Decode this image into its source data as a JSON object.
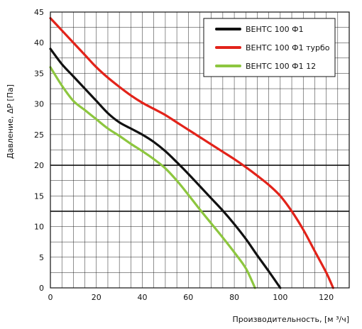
{
  "chart_data": {
    "type": "line",
    "xlabel": "Производительность, [м ³/ч]",
    "ylabel": "Давление, ΔP [Па]",
    "xlim": [
      0,
      130
    ],
    "ylim": [
      0,
      45
    ],
    "x_ticks": [
      0,
      20,
      40,
      60,
      80,
      100,
      120
    ],
    "y_ticks": [
      0,
      5,
      10,
      15,
      20,
      25,
      30,
      35,
      40,
      45
    ],
    "grid": true,
    "major_hlines": [
      20,
      12.5
    ],
    "legend_position": "top-right",
    "series": [
      {
        "name": "ВЕНТС 100 Ф1",
        "color": "#111111",
        "points": [
          [
            0,
            39
          ],
          [
            5,
            36.5
          ],
          [
            10,
            34.5
          ],
          [
            15,
            32.5
          ],
          [
            20,
            30.5
          ],
          [
            25,
            28.5
          ],
          [
            30,
            27
          ],
          [
            35,
            26
          ],
          [
            40,
            25
          ],
          [
            45,
            23.8
          ],
          [
            50,
            22.3
          ],
          [
            55,
            20.5
          ],
          [
            60,
            18.6
          ],
          [
            65,
            16.6
          ],
          [
            70,
            14.6
          ],
          [
            75,
            12.6
          ],
          [
            80,
            10.4
          ],
          [
            85,
            8
          ],
          [
            90,
            5.3
          ],
          [
            95,
            2.7
          ],
          [
            100,
            0
          ]
        ]
      },
      {
        "name": "ВЕНТС 100 Ф1 турбо",
        "color": "#e2231a",
        "points": [
          [
            0,
            44
          ],
          [
            5,
            42
          ],
          [
            10,
            40
          ],
          [
            15,
            38
          ],
          [
            20,
            36
          ],
          [
            25,
            34.3
          ],
          [
            30,
            32.8
          ],
          [
            35,
            31.4
          ],
          [
            40,
            30.2
          ],
          [
            45,
            29.2
          ],
          [
            50,
            28.2
          ],
          [
            55,
            27
          ],
          [
            60,
            25.8
          ],
          [
            65,
            24.6
          ],
          [
            70,
            23.4
          ],
          [
            75,
            22.2
          ],
          [
            80,
            21
          ],
          [
            85,
            19.7
          ],
          [
            90,
            18.3
          ],
          [
            95,
            16.8
          ],
          [
            100,
            15
          ],
          [
            105,
            12.5
          ],
          [
            110,
            9.5
          ],
          [
            115,
            6
          ],
          [
            120,
            2.5
          ],
          [
            123,
            0
          ]
        ]
      },
      {
        "name": "ВЕНТС 100 Ф1 12",
        "color": "#8dc63f",
        "points": [
          [
            0,
            36
          ],
          [
            5,
            33
          ],
          [
            10,
            30.5
          ],
          [
            15,
            29
          ],
          [
            20,
            27.5
          ],
          [
            25,
            26
          ],
          [
            30,
            24.8
          ],
          [
            35,
            23.5
          ],
          [
            40,
            22.3
          ],
          [
            45,
            21
          ],
          [
            50,
            19.5
          ],
          [
            55,
            17.5
          ],
          [
            60,
            15.2
          ],
          [
            65,
            12.8
          ],
          [
            70,
            10.5
          ],
          [
            75,
            8.2
          ],
          [
            80,
            5.8
          ],
          [
            85,
            3.2
          ],
          [
            89,
            0
          ]
        ]
      }
    ]
  }
}
